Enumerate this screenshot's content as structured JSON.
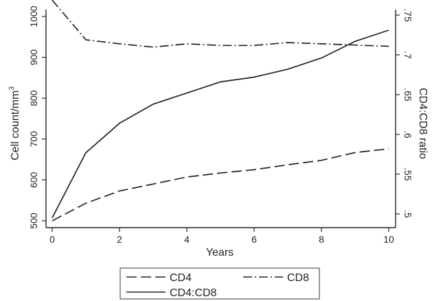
{
  "chart_data": {
    "type": "line",
    "xlabel": "Years",
    "ylabel_left": "Cell count/mm",
    "ylabel_left_superscript": "3",
    "ylabel_right": "CD4:CD8 ratio",
    "xlim": [
      0,
      10
    ],
    "ylim_left": [
      490,
      1040
    ],
    "ylim_right": [
      0.484,
      0.75
    ],
    "x_ticks": [
      0,
      2,
      4,
      6,
      8,
      10
    ],
    "y_ticks_left": [
      500,
      600,
      700,
      800,
      900,
      1000
    ],
    "y_ticks_right": [
      0.5,
      0.55,
      0.6,
      0.65,
      0.7,
      0.75
    ],
    "y_tick_labels_right": [
      ".5",
      ".55",
      ".6",
      ".65",
      ".7",
      ".75"
    ],
    "grid": false,
    "legend_position": "bottom",
    "x": [
      0,
      1,
      2,
      3,
      4,
      5,
      6,
      7,
      8,
      9,
      10
    ],
    "series": [
      {
        "name": "CD4",
        "axis": "left",
        "dash": "long-dash",
        "values": [
          500,
          543,
          573,
          590,
          607,
          617,
          625,
          637,
          648,
          667,
          676
        ]
      },
      {
        "name": "CD8",
        "axis": "left",
        "dash": "dash-dot",
        "values": [
          1040,
          943,
          933,
          925,
          933,
          929,
          929,
          936,
          933,
          930,
          927
        ]
      },
      {
        "name": "CD4:CD8",
        "axis": "right",
        "dash": "solid",
        "values": [
          0.495,
          0.577,
          0.614,
          0.638,
          0.652,
          0.666,
          0.672,
          0.682,
          0.696,
          0.717,
          0.731
        ]
      }
    ]
  }
}
